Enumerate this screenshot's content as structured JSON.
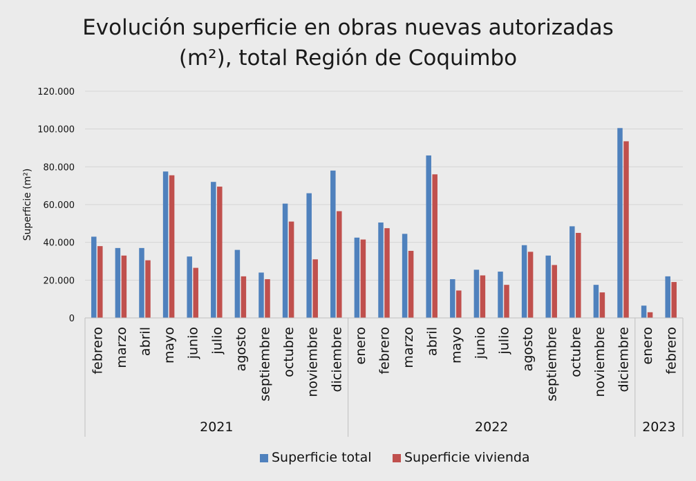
{
  "chart_data": {
    "type": "bar",
    "title_line1": "Evolución superficie en obras nuevas autorizadas",
    "title_line2": "(m²), total Región de Coquimbo",
    "ylabel": "Superficie  (m²)",
    "ylim": [
      0,
      120000
    ],
    "yticks": [
      "0",
      "20.000",
      "40.000",
      "60.000",
      "80.000",
      "100.000",
      "120.000"
    ],
    "categories": [
      "febrero",
      "marzo",
      "abril",
      "mayo",
      "junio",
      "julio",
      "agosto",
      "septiembre",
      "octubre",
      "noviembre",
      "diciembre",
      "enero",
      "febrero",
      "marzo",
      "abril",
      "mayo",
      "junio",
      "julio",
      "agosto",
      "septiembre",
      "octubre",
      "noviembre",
      "diciembre",
      "enero",
      "febrero"
    ],
    "year_groups": [
      {
        "label": "2021",
        "count": 11
      },
      {
        "label": "2022",
        "count": 12
      },
      {
        "label": "2023",
        "count": 2
      }
    ],
    "series": [
      {
        "name": "Superficie total",
        "color": "#4f81bd",
        "values": [
          43000,
          37000,
          37000,
          77500,
          32500,
          72000,
          36000,
          24000,
          60500,
          66000,
          78000,
          42500,
          50500,
          44500,
          86000,
          20500,
          25500,
          24500,
          38500,
          33000,
          48500,
          17500,
          100500,
          6500,
          22000
        ]
      },
      {
        "name": "Superficie vivienda",
        "color": "#c0504d",
        "values": [
          38000,
          33000,
          30500,
          75500,
          26500,
          69500,
          22000,
          20500,
          51000,
          31000,
          56500,
          41500,
          47500,
          35500,
          76000,
          14500,
          22500,
          17500,
          35000,
          28000,
          45000,
          13500,
          93500,
          3000,
          19000
        ]
      }
    ],
    "legend_position": "bottom"
  }
}
